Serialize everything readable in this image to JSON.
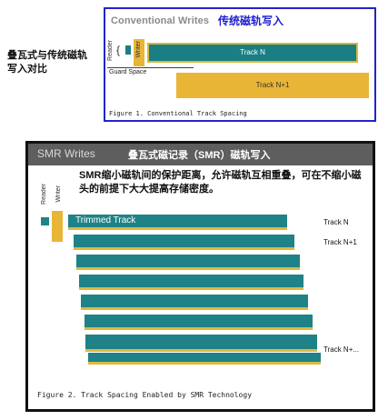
{
  "side_caption": "叠瓦式与传统磁轨写入对比",
  "fig1": {
    "title": "Conventional Writes",
    "title_cn": "传统磁轨写入",
    "reader": "Reader",
    "writer": "Writer",
    "guard_space": "Guard Space",
    "track_n": "Track N",
    "track_n1": "Track N+1",
    "caption": "Figure 1. Conventional Track Spacing"
  },
  "fig2": {
    "title": "SMR Writes",
    "title_cn": "叠瓦式磁记录（SMR）磁轨写入",
    "description": "SMR缩小磁轨间的保护距离，允许磁轨互相重叠，可在不缩小磁头的前提下大大提高存储密度。",
    "reader": "Reader",
    "writer": "Writer",
    "trimmed": "Trimmed Track",
    "track_n": "Track N",
    "track_n1": "Track N+1",
    "track_nplus": "Track N+...",
    "caption": "Figure 2. Track Spacing Enabled by SMR Technology"
  },
  "colors": {
    "teal": "#1f8287",
    "gold": "#e0b93e",
    "border_blue": "#2324c8"
  }
}
